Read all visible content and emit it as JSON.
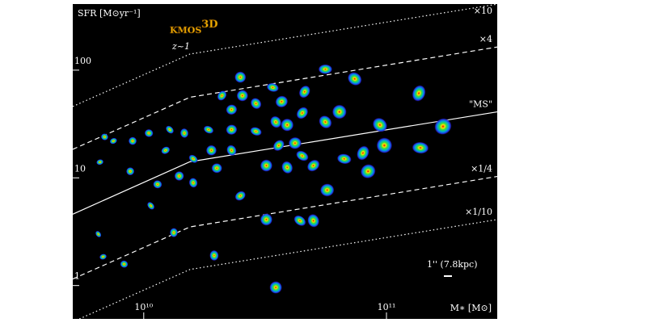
{
  "chart_data": {
    "type": "line",
    "title": "KMOS",
    "title_superscript": "3D",
    "subtitle": "z~1",
    "x_label": "M∗ [M⊙]",
    "y_label": "SFR [M⊙yr⁻¹]",
    "annotation": "1'' (7.8kpc)",
    "x_log": true,
    "y_log": true,
    "xlim": [
      5100000000.0,
      286000000000.0
    ],
    "ylim": [
      0.49,
      411
    ],
    "xticks": [
      {
        "value": 10000000000.0,
        "label": "10¹⁰"
      },
      {
        "value": 100000000000.0,
        "label": "10¹¹"
      }
    ],
    "yticks": [
      1,
      10,
      100
    ],
    "x": [
      5100000000.0,
      15500000000.0,
      286000000000.0
    ],
    "series": [
      {
        "name": "×10",
        "style": "dotted",
        "values": [
          46,
          141,
          410
        ]
      },
      {
        "name": "×4",
        "style": "dashed",
        "values": [
          18.4,
          56,
          164
        ]
      },
      {
        "name": "\"MS\"",
        "style": "solid",
        "values": [
          4.6,
          14.1,
          41
        ]
      },
      {
        "name": "×1/4",
        "style": "dashed",
        "values": [
          1.15,
          3.5,
          10.3
        ]
      },
      {
        "name": "×1/10",
        "style": "dotted",
        "values": [
          0.46,
          1.41,
          4.1
        ]
      }
    ],
    "galaxies": {
      "x": [
        56000000000.0,
        74000000000.0,
        25000000000.0,
        136000000000.0,
        171000000000.0,
        138000000000.0,
        94000000000.0,
        98000000000.0,
        80000000000.0,
        84000000000.0,
        67000000000.0,
        56000000000.0,
        64000000000.0,
        46000000000.0,
        37000000000.0,
        34000000000.0,
        29000000000.0,
        25500000000.0,
        21000000000.0,
        23000000000.0,
        29000000000.0,
        35000000000.0,
        39000000000.0,
        45000000000.0,
        23000000000.0,
        18500000000.0,
        23000000000.0,
        19000000000.0,
        36000000000.0,
        42000000000.0,
        45000000000.0,
        39000000000.0,
        32000000000.0,
        50000000000.0,
        57000000000.0,
        44000000000.0,
        50000000000.0,
        32000000000.0,
        25000000000.0,
        20000000000.0,
        16000000000.0,
        16000000000.0,
        14000000000.0,
        12300000000.0,
        10500000000.0,
        12800000000.0,
        14700000000.0,
        9000000000.0,
        7500000000.0,
        11400000000.0,
        10700000000.0,
        19500000000.0,
        35000000000.0,
        6800000000.0,
        8300000000.0,
        6500000000.0,
        13300000000.0,
        8800000000.0,
        6600000000.0,
        6900000000.0
      ],
      "y": [
        102,
        83,
        86,
        61,
        30,
        19,
        31,
        20,
        17,
        11.5,
        15,
        33,
        41,
        63,
        51,
        69,
        49,
        58,
        58,
        43,
        27,
        33,
        31,
        40,
        28,
        28,
        18,
        18,
        20,
        21,
        16,
        12.5,
        13,
        13,
        7.7,
        4.0,
        4.0,
        4.1,
        6.8,
        12.3,
        15,
        9.0,
        10.4,
        18,
        26,
        28,
        26,
        22,
        22,
        8.7,
        5.5,
        1.9,
        0.96,
        1.85,
        1.58,
        3.0,
        3.1,
        11.5,
        14,
        24
      ]
    }
  }
}
